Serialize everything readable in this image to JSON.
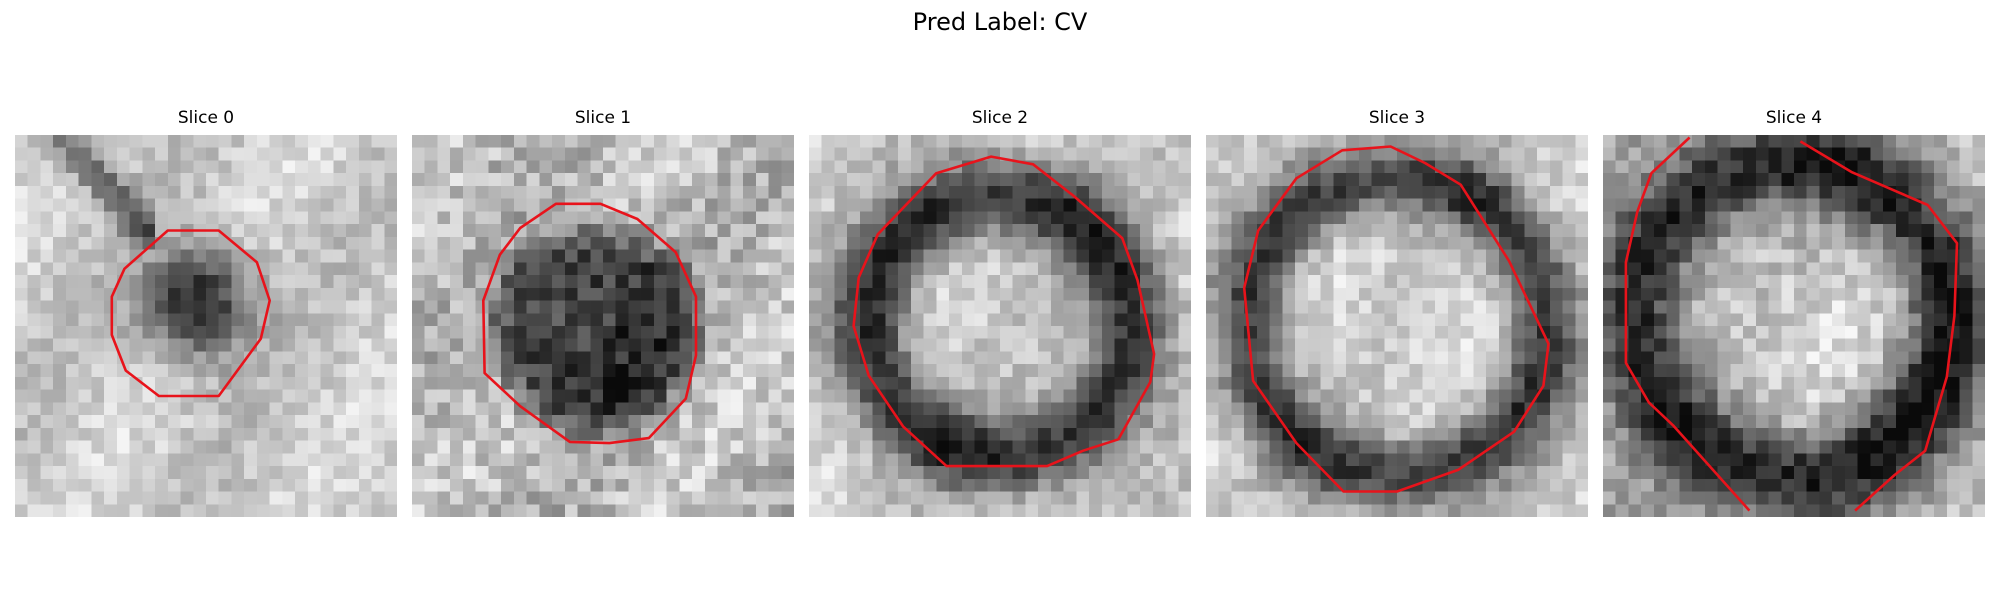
{
  "figure": {
    "title": "Pred Label: CV"
  },
  "slices": [
    {
      "title": "Slice 0",
      "pattern": "dark-blob",
      "contour": "red octagon"
    },
    {
      "title": "Slice 1",
      "pattern": "dark-disk",
      "contour": "red octagon"
    },
    {
      "title": "Slice 2",
      "pattern": "dark-ring-bright-center",
      "contour": "red octagon"
    },
    {
      "title": "Slice 3",
      "pattern": "dark-ring-bright-center",
      "contour": "red octagon"
    },
    {
      "title": "Slice 4",
      "pattern": "dark-ring-bright-center",
      "contour": "red partial polygon (clipped)"
    }
  ],
  "colors": {
    "contour": "#e8131b",
    "background": "#ffffff",
    "colormap": "gray"
  }
}
